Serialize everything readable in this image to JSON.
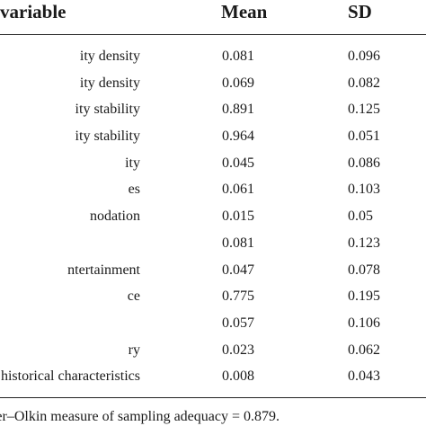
{
  "table": {
    "headers": {
      "variable": "variable",
      "mean": "Mean",
      "sd": "SD"
    },
    "rows": [
      {
        "variable": "ity density",
        "mean": "0.081",
        "sd": "0.096"
      },
      {
        "variable": "ity density",
        "mean": "0.069",
        "sd": "0.082"
      },
      {
        "variable": "ity stability",
        "mean": "0.891",
        "sd": "0.125"
      },
      {
        "variable": "ity stability",
        "mean": "0.964",
        "sd": "0.051"
      },
      {
        "variable": "ity",
        "mean": "0.045",
        "sd": "0.086"
      },
      {
        "variable": "es",
        "mean": "0.061",
        "sd": "0.103"
      },
      {
        "variable": "nodation",
        "mean": "0.015",
        "sd": "0.05"
      },
      {
        "variable": "",
        "mean": "0.081",
        "sd": "0.123"
      },
      {
        "variable": "ntertainment",
        "mean": "0.047",
        "sd": "0.078"
      },
      {
        "variable": "ce",
        "mean": "0.775",
        "sd": "0.195"
      },
      {
        "variable": "",
        "mean": "0.057",
        "sd": "0.106"
      },
      {
        "variable": "ry",
        "mean": "0.023",
        "sd": "0.062"
      },
      {
        "variable": "historical characteristics",
        "mean": "0.008",
        "sd": "0.043"
      }
    ],
    "footnote": "ver–Olkin measure of sampling adequacy = 0.879."
  }
}
